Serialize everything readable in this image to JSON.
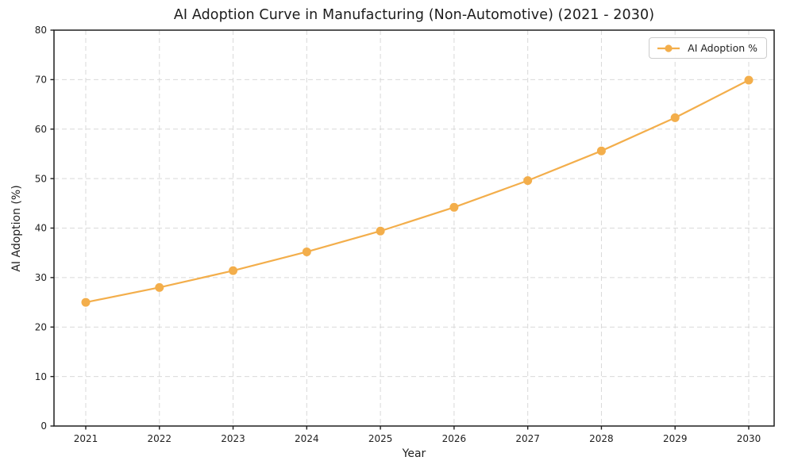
{
  "chart_data": {
    "type": "line",
    "title": "AI Adoption Curve in Manufacturing (Non-Automotive) (2021 - 2030)",
    "xlabel": "Year",
    "ylabel": "AI Adoption (%)",
    "categories": [
      "2021",
      "2022",
      "2023",
      "2024",
      "2025",
      "2026",
      "2027",
      "2028",
      "2029",
      "2030"
    ],
    "series": [
      {
        "name": "AI Adoption %",
        "values": [
          25.0,
          28.0,
          31.4,
          35.2,
          39.4,
          44.2,
          49.6,
          55.6,
          62.3,
          69.9
        ],
        "color": "#f3ae4b",
        "marker": "circle"
      }
    ],
    "ylim": [
      0,
      80
    ],
    "ytick_step": 10,
    "grid": true,
    "grid_style": "dashed",
    "legend_position": "upper right",
    "colors": {
      "grid": "#d9d9d9",
      "axis": "#1f1f1f",
      "background": "#ffffff"
    }
  }
}
